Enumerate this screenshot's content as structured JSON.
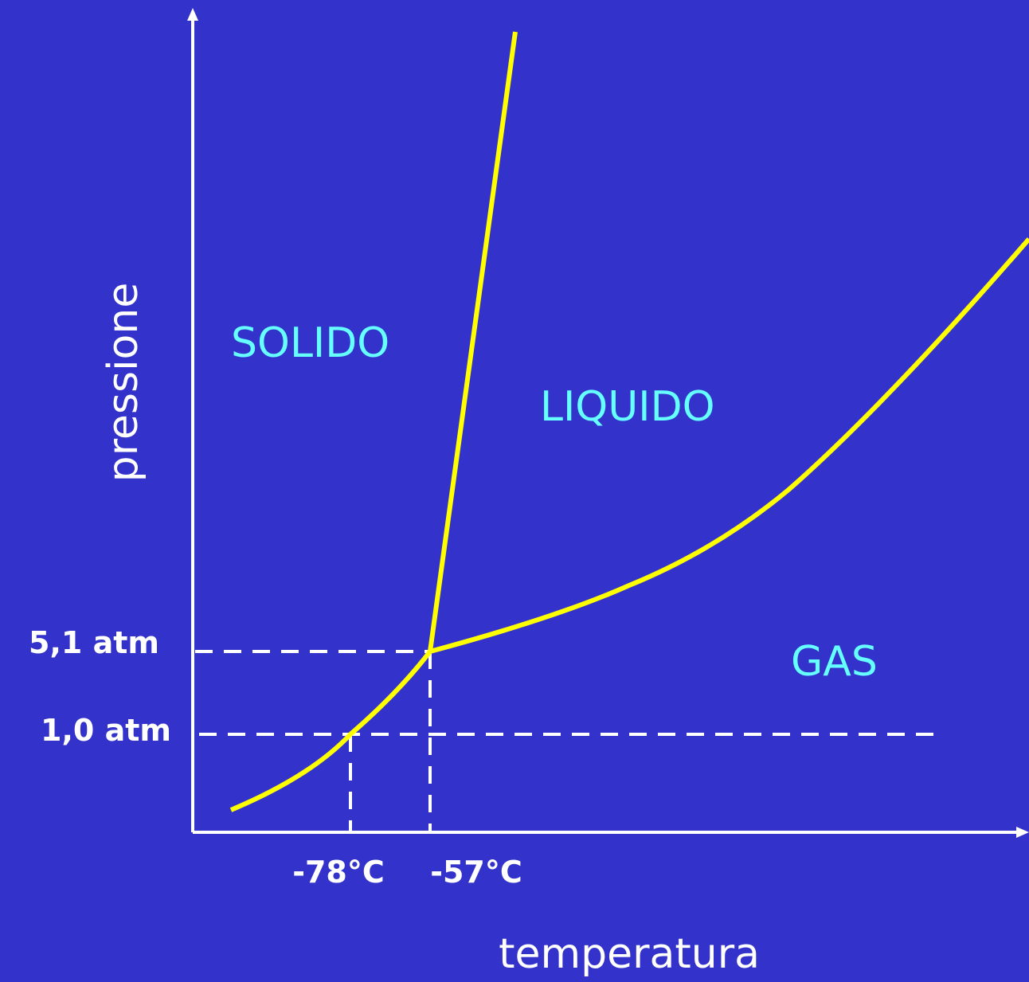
{
  "axes": {
    "y_label": "pressione",
    "x_label": "temperatura"
  },
  "regions": [
    "SOLIDO",
    "LIQUIDO",
    "GAS"
  ],
  "pressure_ticks": [
    "5,1 atm",
    "1,0 atm"
  ],
  "temperature_ticks": [
    "-78°C",
    "-57°C"
  ]
}
